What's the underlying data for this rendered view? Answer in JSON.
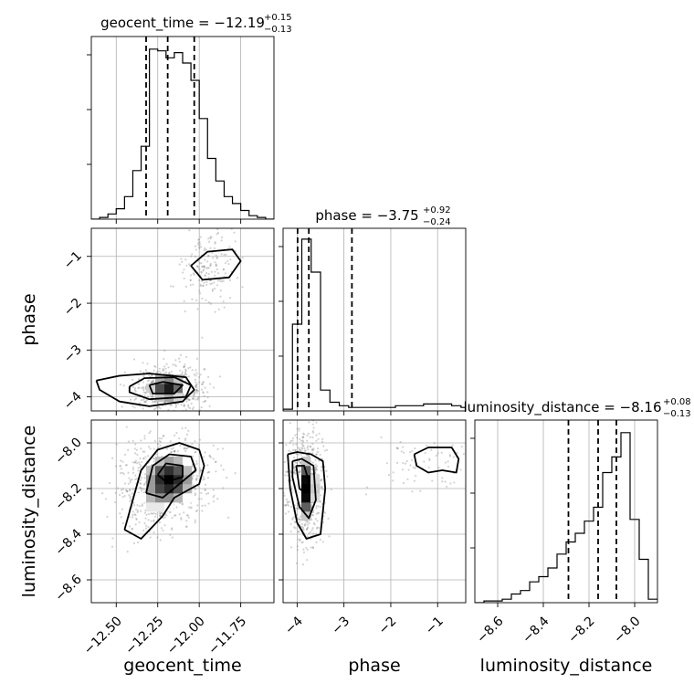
{
  "chart_data": {
    "type": "corner",
    "parameters": [
      "geocent_time",
      "phase",
      "luminosity_distance"
    ],
    "titles": [
      {
        "prefix": "geocent_time = ",
        "value": "−12.19",
        "upper": "+0.15",
        "lower": "−0.13"
      },
      {
        "prefix": "phase = ",
        "value": "−3.75",
        "upper": "+0.92",
        "lower": "−0.24"
      },
      {
        "prefix": "luminosity_distance = ",
        "value": "−8.16",
        "upper": "+0.08",
        "lower": "−0.13"
      }
    ],
    "axis_labels": [
      "geocent_time",
      "phase",
      "luminosity_distance"
    ],
    "ranges": {
      "geocent_time": [
        -12.65,
        -11.55
      ],
      "phase": [
        -4.3,
        -0.4
      ],
      "luminosity_distance": [
        -8.7,
        -7.9
      ]
    },
    "ticks": {
      "geocent_time": [
        -12.5,
        -12.25,
        -12.0,
        -11.75
      ],
      "phase": [
        -4,
        -3,
        -2,
        -1
      ],
      "luminosity_distance": [
        -8.6,
        -8.4,
        -8.2,
        -8.0
      ]
    },
    "tick_labels": {
      "geocent_time": [
        "−12.50",
        "−12.25",
        "−12.00",
        "−11.75"
      ],
      "phase": [
        "−4",
        "−3",
        "−2",
        "−1"
      ],
      "luminosity_distance": [
        "−8.6",
        "−8.4",
        "−8.2",
        "−8.0"
      ],
      "phase_y": [
        "−1",
        "−2",
        "−3",
        "−4"
      ],
      "luminosity_distance_y": [
        "−8.0",
        "−8.2",
        "−8.4",
        "−8.6"
      ]
    },
    "quantiles": {
      "geocent_time": [
        -12.32,
        -12.19,
        -12.03
      ],
      "phase": [
        -3.99,
        -3.75,
        -2.83
      ],
      "luminosity_distance": [
        -8.29,
        -8.16,
        -8.08
      ]
    },
    "histograms": {
      "geocent_time": {
        "bin_edges": [
          -12.65,
          -12.6,
          -12.55,
          -12.5,
          -12.45,
          -12.4,
          -12.35,
          -12.3,
          -12.25,
          -12.2,
          -12.15,
          -12.1,
          -12.05,
          -12.0,
          -11.95,
          -11.9,
          -11.85,
          -11.8,
          -11.75,
          -11.7,
          -11.65,
          -11.6,
          -11.55
        ],
        "density": [
          0,
          0.01,
          0.03,
          0.06,
          0.13,
          0.28,
          0.42,
          0.98,
          0.97,
          0.93,
          0.96,
          0.9,
          0.8,
          0.58,
          0.35,
          0.22,
          0.13,
          0.09,
          0.05,
          0.02,
          0.01,
          0
        ]
      },
      "phase": {
        "bin_edges": [
          -4.3,
          -4.1,
          -3.9,
          -3.7,
          -3.5,
          -3.3,
          -3.1,
          -2.9,
          -2.7,
          -2.5,
          -2.3,
          -2.1,
          -1.9,
          -1.7,
          -1.5,
          -1.3,
          -1.1,
          -0.9,
          -0.7,
          -0.5,
          -0.4
        ],
        "density": [
          0.01,
          0.5,
          0.99,
          0.8,
          0.12,
          0.05,
          0.03,
          0.02,
          0.02,
          0.02,
          0.02,
          0.02,
          0.03,
          0.03,
          0.03,
          0.04,
          0.04,
          0.04,
          0.03,
          0.02
        ]
      },
      "luminosity_distance": {
        "bin_edges": [
          -8.7,
          -8.66,
          -8.62,
          -8.58,
          -8.54,
          -8.5,
          -8.46,
          -8.42,
          -8.38,
          -8.34,
          -8.3,
          -8.26,
          -8.22,
          -8.18,
          -8.14,
          -8.1,
          -8.06,
          -8.02,
          -7.98,
          -7.94,
          -7.9
        ],
        "density": [
          0,
          0.01,
          0.01,
          0.02,
          0.05,
          0.07,
          0.12,
          0.15,
          0.2,
          0.28,
          0.35,
          0.4,
          0.47,
          0.55,
          0.75,
          0.84,
          0.98,
          0.48,
          0.25,
          0.02
        ]
      }
    },
    "joint": {
      "geocent_time__phase": {
        "blobs": [
          {
            "x": -12.19,
            "y": -3.8,
            "sx": 0.09,
            "sy": 0.22,
            "w": 0.75
          },
          {
            "x": -11.95,
            "y": -1.2,
            "sx": 0.07,
            "sy": 0.4,
            "w": 0.25
          }
        ],
        "contours": [
          [
            [
              -12.62,
              -3.65
            ],
            [
              -12.48,
              -3.55
            ],
            [
              -12.3,
              -3.5
            ],
            [
              -12.08,
              -3.58
            ],
            [
              -12.03,
              -3.85
            ],
            [
              -12.1,
              -4.1
            ],
            [
              -12.3,
              -4.2
            ],
            [
              -12.48,
              -4.1
            ],
            [
              -12.6,
              -3.85
            ],
            [
              -12.62,
              -3.65
            ]
          ],
          [
            [
              -12.42,
              -3.78
            ],
            [
              -12.33,
              -3.6
            ],
            [
              -12.15,
              -3.58
            ],
            [
              -12.05,
              -3.75
            ],
            [
              -12.08,
              -4.0
            ],
            [
              -12.3,
              -4.05
            ],
            [
              -12.42,
              -3.9
            ],
            [
              -12.42,
              -3.78
            ]
          ],
          [
            [
              -12.3,
              -3.75
            ],
            [
              -12.22,
              -3.68
            ],
            [
              -12.1,
              -3.75
            ],
            [
              -12.15,
              -3.93
            ],
            [
              -12.28,
              -3.93
            ],
            [
              -12.3,
              -3.75
            ]
          ],
          [
            [
              -12.05,
              -1.2
            ],
            [
              -11.95,
              -0.9
            ],
            [
              -11.8,
              -0.85
            ],
            [
              -11.75,
              -1.1
            ],
            [
              -11.82,
              -1.45
            ],
            [
              -11.98,
              -1.5
            ],
            [
              -12.05,
              -1.2
            ]
          ]
        ]
      },
      "geocent_time__luminosity_distance": {
        "blobs": [
          {
            "x": -12.18,
            "y": -8.16,
            "sx": 0.11,
            "sy": 0.08,
            "w": 0.8
          },
          {
            "x": -12.32,
            "y": -8.28,
            "sx": 0.08,
            "sy": 0.06,
            "w": 0.2
          }
        ],
        "contours": [
          [
            [
              -12.45,
              -8.38
            ],
            [
              -12.35,
              -8.12
            ],
            [
              -12.25,
              -8.03
            ],
            [
              -12.12,
              -8.0
            ],
            [
              -12.0,
              -8.03
            ],
            [
              -11.97,
              -8.1
            ],
            [
              -12.0,
              -8.18
            ],
            [
              -12.15,
              -8.24
            ],
            [
              -12.22,
              -8.32
            ],
            [
              -12.35,
              -8.42
            ],
            [
              -12.45,
              -8.38
            ]
          ],
          [
            [
              -12.32,
              -8.22
            ],
            [
              -12.28,
              -8.1
            ],
            [
              -12.18,
              -8.05
            ],
            [
              -12.05,
              -8.06
            ],
            [
              -12.02,
              -8.12
            ],
            [
              -12.12,
              -8.18
            ],
            [
              -12.22,
              -8.24
            ],
            [
              -12.32,
              -8.22
            ]
          ],
          [
            [
              -12.25,
              -8.14
            ],
            [
              -12.2,
              -8.09
            ],
            [
              -12.1,
              -8.1
            ],
            [
              -12.1,
              -8.15
            ],
            [
              -12.2,
              -8.17
            ],
            [
              -12.25,
              -8.14
            ]
          ]
        ]
      },
      "phase__luminosity_distance": {
        "blobs": [
          {
            "x": -3.8,
            "y": -8.2,
            "sx": 0.15,
            "sy": 0.1,
            "w": 0.85
          },
          {
            "x": -1.0,
            "y": -8.08,
            "sx": 0.6,
            "sy": 0.05,
            "w": 0.15
          }
        ],
        "contours": [
          [
            [
              -4.2,
              -8.05
            ],
            [
              -4.0,
              -8.04
            ],
            [
              -3.7,
              -8.05
            ],
            [
              -3.45,
              -8.08
            ],
            [
              -3.4,
              -8.2
            ],
            [
              -3.5,
              -8.4
            ],
            [
              -3.8,
              -8.42
            ],
            [
              -4.0,
              -8.35
            ],
            [
              -4.15,
              -8.2
            ],
            [
              -4.2,
              -8.05
            ]
          ],
          [
            [
              -4.1,
              -8.08
            ],
            [
              -3.9,
              -8.07
            ],
            [
              -3.65,
              -8.1
            ],
            [
              -3.6,
              -8.25
            ],
            [
              -3.75,
              -8.33
            ],
            [
              -3.95,
              -8.28
            ],
            [
              -4.1,
              -8.15
            ],
            [
              -4.1,
              -8.08
            ]
          ],
          [
            [
              -4.02,
              -8.1
            ],
            [
              -3.85,
              -8.1
            ],
            [
              -3.75,
              -8.17
            ],
            [
              -3.82,
              -8.22
            ],
            [
              -3.95,
              -8.2
            ],
            [
              -4.02,
              -8.1
            ]
          ],
          [
            [
              -1.5,
              -8.05
            ],
            [
              -1.2,
              -8.02
            ],
            [
              -0.7,
              -8.02
            ],
            [
              -0.55,
              -8.07
            ],
            [
              -0.6,
              -8.13
            ],
            [
              -0.9,
              -8.12
            ],
            [
              -1.2,
              -8.13
            ],
            [
              -1.45,
              -8.1
            ],
            [
              -1.5,
              -8.05
            ]
          ]
        ]
      }
    }
  }
}
